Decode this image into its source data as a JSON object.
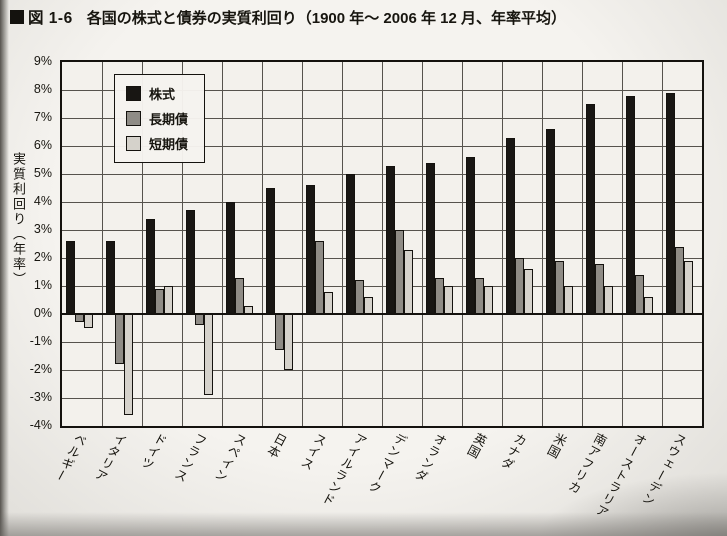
{
  "header": {
    "figure_label": "図 1-6",
    "title": "各国の株式と債券の実質利回り（1900 年～ 2006 年 12 月、年率平均）"
  },
  "chart_data": {
    "type": "bar",
    "title": "各国の株式と債券の実質利回り（1900年～2006年12月、年率平均）",
    "ylabel": "実質利回り（年率）",
    "ylim": [
      -4,
      9
    ],
    "ytick_step": 1,
    "ytick_suffix": "%",
    "yticks": [
      "9%",
      "8%",
      "7%",
      "6%",
      "5%",
      "4%",
      "3%",
      "2%",
      "1%",
      "0%",
      "-1%",
      "-2%",
      "-3%",
      "-4%"
    ],
    "grid": true,
    "legend_position": "top-left",
    "categories": [
      "ベルギー",
      "イタリア",
      "ドイツ",
      "フランス",
      "スペイン",
      "日本",
      "スイス",
      "アイルランド",
      "デンマーク",
      "オランダ",
      "英国",
      "カナダ",
      "米国",
      "南アフリカ",
      "オーストラリア",
      "スウェーデン"
    ],
    "series": [
      {
        "name": "株式",
        "color": "#181613",
        "values": [
          2.6,
          2.6,
          3.4,
          3.7,
          4.0,
          4.5,
          4.6,
          5.0,
          5.3,
          5.4,
          5.6,
          6.3,
          6.6,
          7.5,
          7.8,
          7.9
        ]
      },
      {
        "name": "長期債",
        "color": "#8f8c86",
        "values": [
          -0.3,
          -1.8,
          0.9,
          -0.4,
          1.3,
          -1.3,
          2.6,
          1.2,
          3.0,
          1.3,
          1.3,
          2.0,
          1.9,
          1.8,
          1.4,
          2.4
        ]
      },
      {
        "name": "短期債",
        "color": "#d5d2cb",
        "values": [
          -0.5,
          -3.6,
          1.0,
          -2.9,
          0.3,
          -2.0,
          0.8,
          0.6,
          2.3,
          1.0,
          1.0,
          1.6,
          1.0,
          1.0,
          0.6,
          1.9
        ]
      }
    ]
  }
}
